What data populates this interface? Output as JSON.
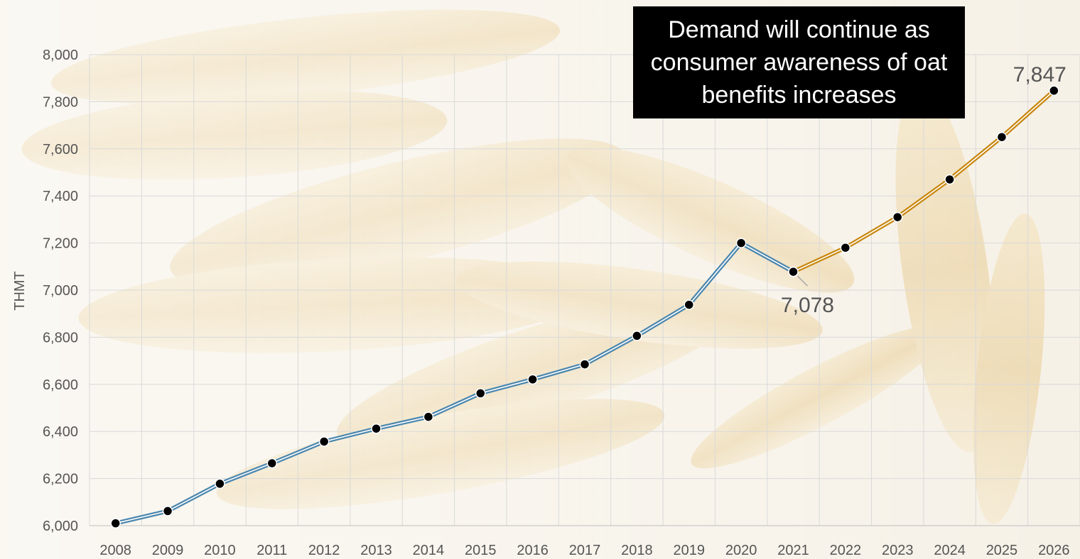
{
  "chart_data": {
    "type": "line",
    "x": [
      2008,
      2009,
      2010,
      2011,
      2012,
      2013,
      2014,
      2015,
      2016,
      2017,
      2018,
      2019,
      2020,
      2021,
      2022,
      2023,
      2024,
      2025,
      2026
    ],
    "series": [
      {
        "values": [
          6010,
          6062,
          6178,
          6265,
          6357,
          6412,
          6462,
          6562,
          6621,
          6685,
          6806,
          6938,
          7200,
          7078,
          null,
          null,
          null,
          null,
          null
        ],
        "color": "#4a86ad"
      },
      {
        "values": [
          null,
          null,
          null,
          null,
          null,
          null,
          null,
          null,
          null,
          null,
          null,
          null,
          null,
          7078,
          7180,
          7310,
          7470,
          7650,
          7847
        ],
        "color": "#c8860d"
      }
    ],
    "ylabel": "THMT",
    "ylim": [
      6000,
      8000
    ],
    "yticks": [
      "6,000",
      "6,200",
      "6,400",
      "6,600",
      "6,800",
      "7,000",
      "7,200",
      "7,400",
      "7,600",
      "7,800",
      "8,000"
    ],
    "xticks": [
      "2008",
      "2009",
      "2010",
      "2011",
      "2012",
      "2013",
      "2014",
      "2015",
      "2016",
      "2017",
      "2018",
      "2019",
      "2020",
      "2021",
      "2022",
      "2023",
      "2024",
      "2025",
      "2026"
    ],
    "grid": true,
    "data_labels": [
      {
        "x": 2021,
        "text": "7,078"
      },
      {
        "x": 2026,
        "text": "7,847"
      }
    ],
    "annotation": "Demand will continue as consumer awareness of oat benefits increases"
  }
}
